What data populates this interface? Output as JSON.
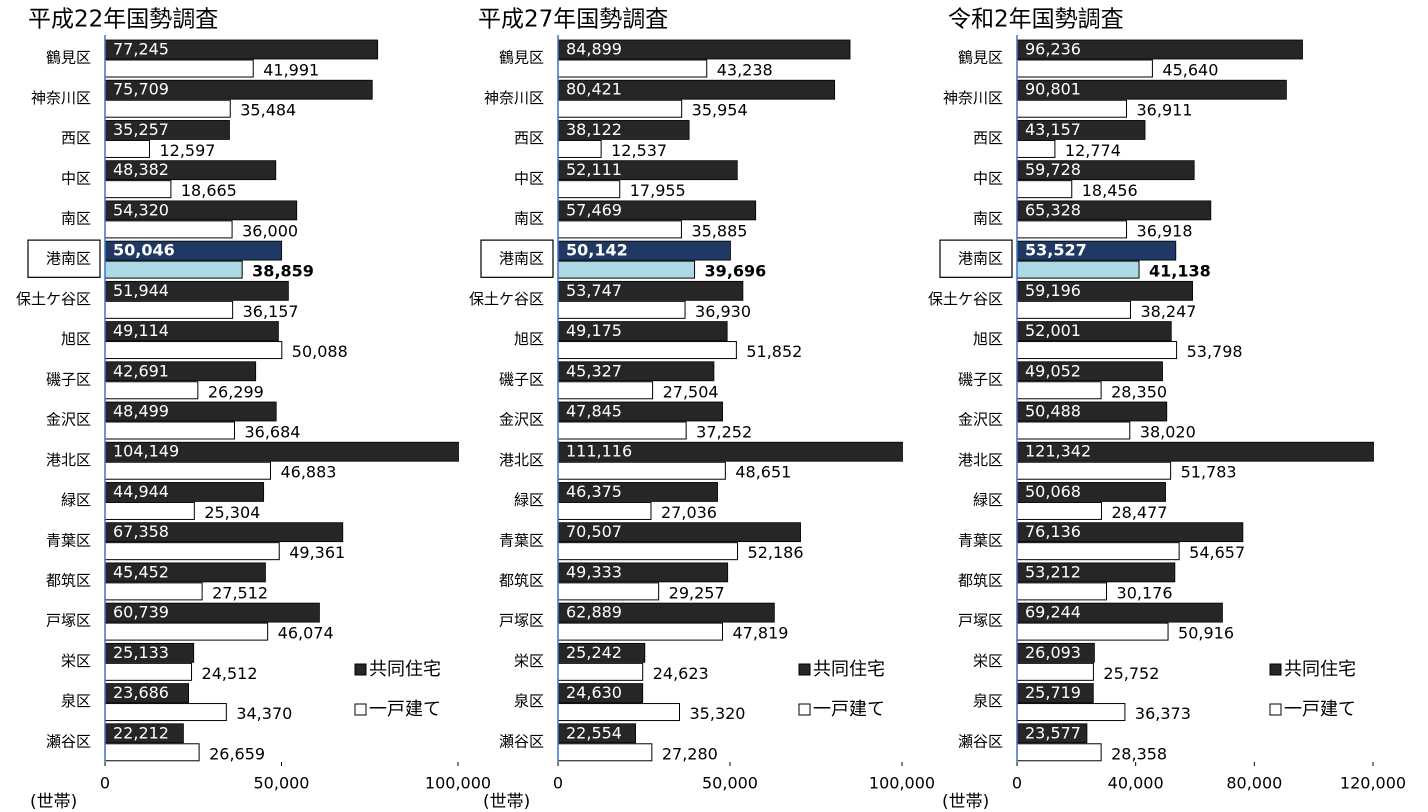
{
  "chart_data": [
    {
      "type": "hbar",
      "title": "平成22年国勢調査",
      "x_unit": "(世帯)",
      "categories": [
        "鶴見区",
        "神奈川区",
        "西区",
        "中区",
        "南区",
        "港南区",
        "保土ケ谷区",
        "旭区",
        "磯子区",
        "金沢区",
        "港北区",
        "緑区",
        "青葉区",
        "都筑区",
        "戸塚区",
        "栄区",
        "泉区",
        "瀬谷区"
      ],
      "xlim": [
        0,
        100000
      ],
      "xticks": [
        0,
        {
          "value": 50000,
          "label": "50,000"
        },
        {
          "value": 100000,
          "label": "100,000"
        }
      ],
      "legend": "lower right",
      "series": [
        {
          "name": "共同住宅",
          "colors": [
            "#262626",
            "#262626",
            "#262626",
            "#262626",
            "#262626",
            "#1f3864",
            "#262626",
            "#262626",
            "#262626",
            "#262626",
            "#262626",
            "#262626",
            "#262626",
            "#262626",
            "#262626",
            "#262626",
            "#262626",
            "#262626"
          ],
          "values": [
            77245,
            75709,
            35257,
            48382,
            54320,
            50046,
            51944,
            49114,
            42691,
            48499,
            104149,
            44944,
            67358,
            45452,
            60739,
            25133,
            23686,
            22212
          ],
          "value_labels": [
            "77,245",
            "75,709",
            "35,257",
            "48,382",
            "54,320",
            "50,046",
            "51,944",
            "49,114",
            "42,691",
            "48,499",
            "104,149",
            "44,944",
            "67,358",
            "45,452",
            "60,739",
            "25,133",
            "23,686",
            "22,212"
          ]
        },
        {
          "name": "一戸建て",
          "colors": [
            "#ffffff",
            "#ffffff",
            "#ffffff",
            "#ffffff",
            "#ffffff",
            "#add8e6",
            "#ffffff",
            "#ffffff",
            "#ffffff",
            "#ffffff",
            "#ffffff",
            "#ffffff",
            "#ffffff",
            "#ffffff",
            "#ffffff",
            "#ffffff",
            "#ffffff",
            "#ffffff"
          ],
          "values": [
            41991,
            35484,
            12597,
            18665,
            36000,
            38859,
            36157,
            50088,
            26299,
            36684,
            46883,
            25304,
            49361,
            27512,
            46074,
            24512,
            34370,
            26659
          ],
          "value_labels": [
            "41,991",
            "35,484",
            "12,597",
            "18,665",
            "36,000",
            "38,859",
            "36,157",
            "50,088",
            "26,299",
            "36,684",
            "46,883",
            "25,304",
            "49,361",
            "27,512",
            "46,074",
            "24,512",
            "34,370",
            "26,659"
          ]
        }
      ]
    },
    {
      "type": "hbar",
      "title": "平成27年国勢調査",
      "x_unit": "(世帯)",
      "categories": [
        "鶴見区",
        "神奈川区",
        "西区",
        "中区",
        "南区",
        "港南区",
        "保土ケ谷区",
        "旭区",
        "磯子区",
        "金沢区",
        "港北区",
        "緑区",
        "青葉区",
        "都筑区",
        "戸塚区",
        "栄区",
        "泉区",
        "瀬谷区"
      ],
      "xlim": [
        0,
        100000
      ],
      "xticks": [
        0,
        {
          "value": 50000,
          "label": "50,000"
        },
        {
          "value": 100000,
          "label": "100,000"
        }
      ],
      "legend": "lower right",
      "series": [
        {
          "name": "共同住宅",
          "colors": [
            "#262626",
            "#262626",
            "#262626",
            "#262626",
            "#262626",
            "#1f3864",
            "#262626",
            "#262626",
            "#262626",
            "#262626",
            "#262626",
            "#262626",
            "#262626",
            "#262626",
            "#262626",
            "#262626",
            "#262626",
            "#262626"
          ],
          "values": [
            84899,
            80421,
            38122,
            52111,
            57469,
            50142,
            53747,
            49175,
            45327,
            47845,
            111116,
            46375,
            70507,
            49333,
            62889,
            25242,
            24630,
            22554
          ],
          "value_labels": [
            "84,899",
            "80,421",
            "38,122",
            "52,111",
            "57,469",
            "50,142",
            "53,747",
            "49,175",
            "45,327",
            "47,845",
            "111,116",
            "46,375",
            "70,507",
            "49,333",
            "62,889",
            "25,242",
            "24,630",
            "22,554"
          ]
        },
        {
          "name": "一戸建て",
          "colors": [
            "#ffffff",
            "#ffffff",
            "#ffffff",
            "#ffffff",
            "#ffffff",
            "#add8e6",
            "#ffffff",
            "#ffffff",
            "#ffffff",
            "#ffffff",
            "#ffffff",
            "#ffffff",
            "#ffffff",
            "#ffffff",
            "#ffffff",
            "#ffffff",
            "#ffffff",
            "#ffffff"
          ],
          "values": [
            43238,
            35954,
            12537,
            17955,
            35885,
            39696,
            36930,
            51852,
            27504,
            37252,
            48651,
            27036,
            52186,
            29257,
            47819,
            24623,
            35320,
            27280
          ],
          "value_labels": [
            "43,238",
            "35,954",
            "12,537",
            "17,955",
            "35,885",
            "39,696",
            "36,930",
            "51,852",
            "27,504",
            "37,252",
            "48,651",
            "27,036",
            "52,186",
            "29,257",
            "47,819",
            "24,623",
            "35,320",
            "27,280"
          ]
        }
      ]
    },
    {
      "type": "hbar",
      "title": "令和2年国勢調査",
      "x_unit": "(世帯)",
      "categories": [
        "鶴見区",
        "神奈川区",
        "西区",
        "中区",
        "南区",
        "港南区",
        "保土ケ谷区",
        "旭区",
        "磯子区",
        "金沢区",
        "港北区",
        "緑区",
        "青葉区",
        "都筑区",
        "戸塚区",
        "栄区",
        "泉区",
        "瀬谷区"
      ],
      "xlim": [
        0,
        120000
      ],
      "xticks": [
        0,
        {
          "value": 40000,
          "label": "40,000"
        },
        {
          "value": 80000,
          "label": "80,000"
        },
        {
          "value": 120000,
          "label": "120,000"
        }
      ],
      "legend": "lower right",
      "series": [
        {
          "name": "共同住宅",
          "colors": [
            "#262626",
            "#262626",
            "#262626",
            "#262626",
            "#262626",
            "#1f3864",
            "#262626",
            "#262626",
            "#262626",
            "#262626",
            "#262626",
            "#262626",
            "#262626",
            "#262626",
            "#262626",
            "#262626",
            "#262626",
            "#262626"
          ],
          "values": [
            96236,
            90801,
            43157,
            59728,
            65328,
            53527,
            59196,
            52001,
            49052,
            50488,
            121342,
            50068,
            76136,
            53212,
            69244,
            26093,
            25719,
            23577
          ],
          "value_labels": [
            "96,236",
            "90,801",
            "43,157",
            "59,728",
            "65,328",
            "53,527",
            "59,196",
            "52,001",
            "49,052",
            "50,488",
            "121,342",
            "50,068",
            "76,136",
            "53,212",
            "69,244",
            "26,093",
            "25,719",
            "23,577"
          ]
        },
        {
          "name": "一戸建て",
          "colors": [
            "#ffffff",
            "#ffffff",
            "#ffffff",
            "#ffffff",
            "#ffffff",
            "#add8e6",
            "#ffffff",
            "#ffffff",
            "#ffffff",
            "#ffffff",
            "#ffffff",
            "#ffffff",
            "#ffffff",
            "#ffffff",
            "#ffffff",
            "#ffffff",
            "#ffffff",
            "#ffffff"
          ],
          "values": [
            45640,
            36911,
            12774,
            18456,
            36918,
            41138,
            38247,
            53798,
            28350,
            38020,
            51783,
            28477,
            54657,
            30176,
            50916,
            25752,
            36373,
            28358
          ],
          "value_labels": [
            "45,640",
            "36,911",
            "12,774",
            "18,456",
            "36,918",
            "41,138",
            "38,247",
            "53,798",
            "28,350",
            "38,020",
            "51,783",
            "28,477",
            "54,657",
            "30,176",
            "50,916",
            "25,752",
            "36,373",
            "28,358"
          ]
        }
      ]
    }
  ]
}
